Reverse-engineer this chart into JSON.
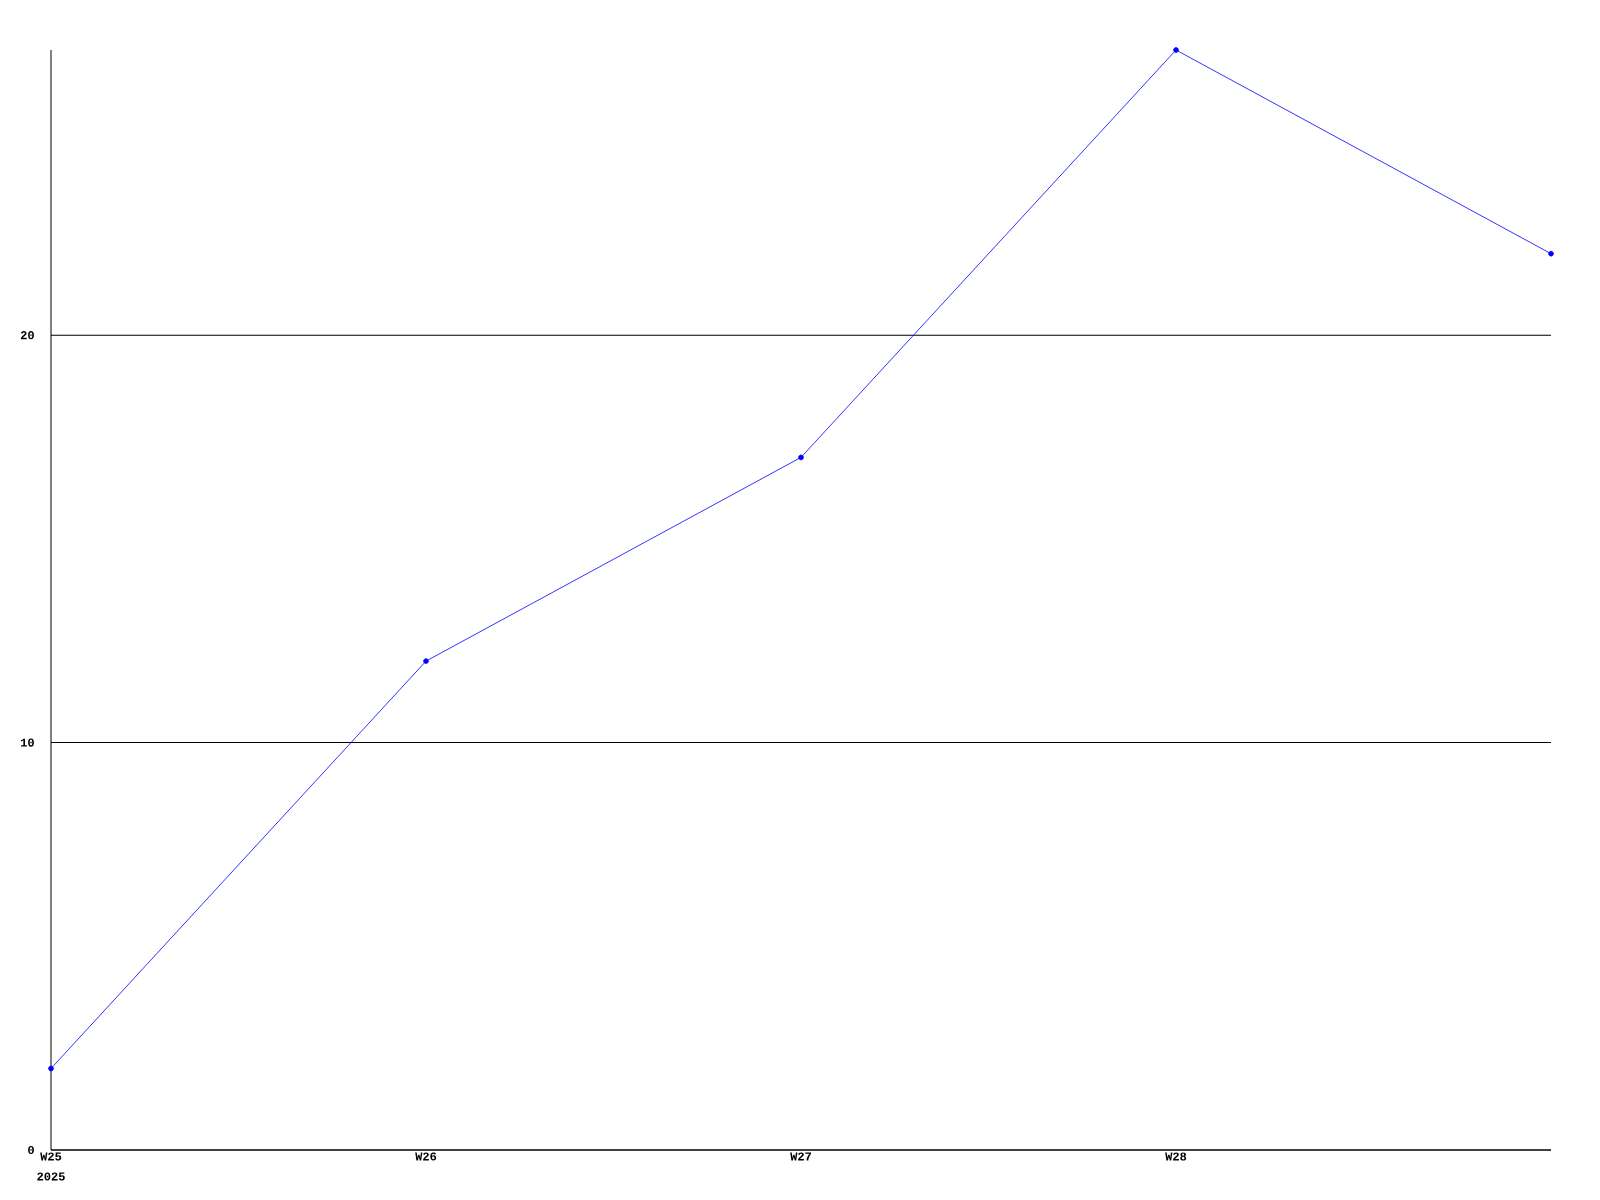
{
  "chart_data": {
    "type": "line",
    "categories": [
      "W25",
      "W26",
      "W27",
      "W28",
      null
    ],
    "values": [
      2,
      12,
      17,
      27,
      22
    ],
    "color": "#0000ff",
    "marker": "circle",
    "ylim": [
      0,
      27
    ],
    "yticks": [
      0,
      10,
      20
    ],
    "grid": "y",
    "annotations": [
      "2025"
    ]
  }
}
